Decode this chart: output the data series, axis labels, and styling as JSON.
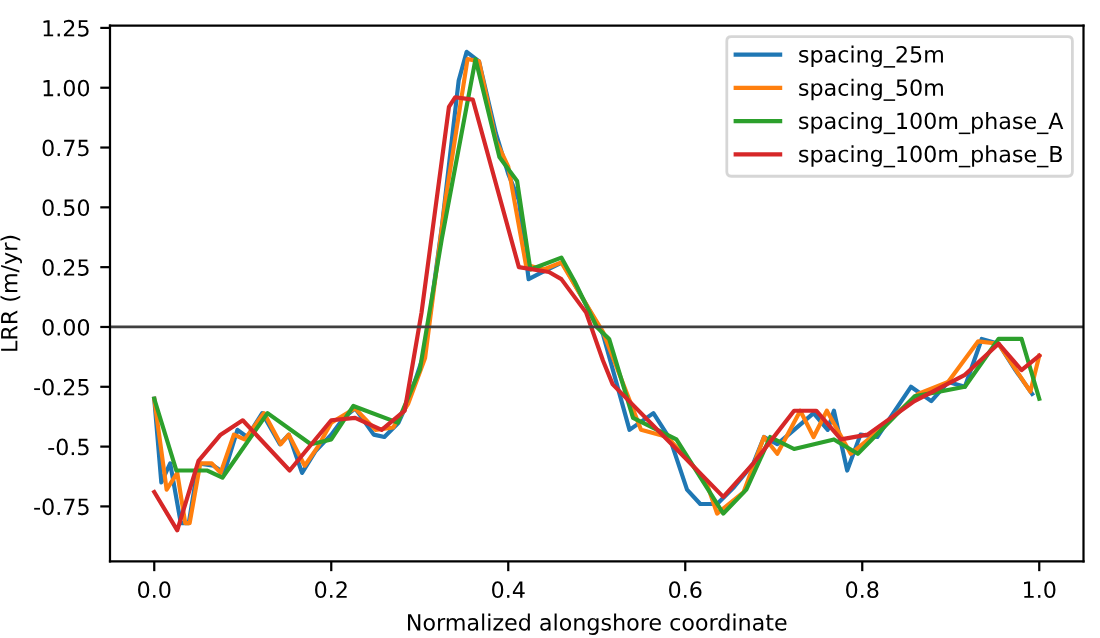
{
  "chart_data": {
    "type": "line",
    "xlabel": "Normalized alongshore coordinate",
    "ylabel": "LRR (m/yr)",
    "xlim": [
      -0.05,
      1.05
    ],
    "ylim": [
      -0.98,
      1.26
    ],
    "xticks": [
      {
        "value": 0,
        "label": "0.0"
      },
      0.2,
      0.4,
      0.6,
      0.8,
      {
        "value": 1,
        "label": "1.0"
      }
    ],
    "yticks": [
      -0.75,
      -0.5,
      -0.25,
      {
        "value": 0,
        "label": "0.00"
      },
      0.25,
      {
        "value": 0.5,
        "label": "0.50"
      },
      0.75,
      {
        "value": 1,
        "label": "1.00"
      },
      1.25
    ],
    "grid": false,
    "legend": "top right",
    "line_style": "solid",
    "marker": "none",
    "ref_lines": [
      {
        "axis": "y",
        "value": 0,
        "color": "#404040"
      }
    ],
    "series": [
      {
        "name": "spacing_25m",
        "color": "#1f77b4",
        "x": [
          0,
          0.008,
          0.018,
          0.03,
          0.039,
          0.05,
          0.067,
          0.079,
          0.094,
          0.105,
          0.122,
          0.142,
          0.152,
          0.167,
          0.182,
          0.2,
          0.214,
          0.227,
          0.248,
          0.26,
          0.276,
          0.287,
          0.306,
          0.325,
          0.344,
          0.353,
          0.367,
          0.386,
          0.4,
          0.412,
          0.423,
          0.439,
          0.461,
          0.484,
          0.507,
          0.537,
          0.564,
          0.583,
          0.602,
          0.617,
          0.636,
          0.655,
          0.677,
          0.689,
          0.704,
          0.723,
          0.745,
          0.761,
          0.768,
          0.783,
          0.798,
          0.817,
          0.855,
          0.878,
          0.897,
          0.916,
          0.935,
          0.954,
          0.973,
          0.992
        ],
        "values": [
          -0.3,
          -0.65,
          -0.57,
          -0.82,
          -0.82,
          -0.57,
          -0.58,
          -0.61,
          -0.43,
          -0.46,
          -0.36,
          -0.49,
          -0.45,
          -0.61,
          -0.52,
          -0.45,
          -0.38,
          -0.34,
          -0.45,
          -0.46,
          -0.4,
          -0.31,
          -0.1,
          0.42,
          1.03,
          1.15,
          1.11,
          0.81,
          0.64,
          0.53,
          0.2,
          0.23,
          0.27,
          0.12,
          -0.03,
          -0.43,
          -0.36,
          -0.47,
          -0.68,
          -0.74,
          -0.74,
          -0.67,
          -0.57,
          -0.46,
          -0.49,
          -0.43,
          -0.36,
          -0.43,
          -0.35,
          -0.6,
          -0.45,
          -0.46,
          -0.25,
          -0.31,
          -0.23,
          -0.25,
          -0.05,
          -0.07,
          -0.18,
          -0.28
        ]
      },
      {
        "name": "spacing_50m",
        "color": "#ff7f0e",
        "x": [
          0,
          0.014,
          0.026,
          0.035,
          0.04,
          0.052,
          0.065,
          0.075,
          0.09,
          0.102,
          0.124,
          0.143,
          0.152,
          0.17,
          0.185,
          0.2,
          0.227,
          0.25,
          0.27,
          0.287,
          0.306,
          0.329,
          0.354,
          0.367,
          0.386,
          0.4,
          0.42,
          0.44,
          0.46,
          0.484,
          0.507,
          0.55,
          0.58,
          0.623,
          0.636,
          0.666,
          0.689,
          0.704,
          0.73,
          0.745,
          0.76,
          0.787,
          0.81,
          0.863,
          0.897,
          0.931,
          0.954,
          0.99,
          1.0
        ],
        "values": [
          -0.3,
          -0.68,
          -0.61,
          -0.82,
          -0.82,
          -0.57,
          -0.57,
          -0.61,
          -0.45,
          -0.47,
          -0.36,
          -0.49,
          -0.45,
          -0.58,
          -0.5,
          -0.4,
          -0.34,
          -0.43,
          -0.42,
          -0.32,
          -0.13,
          0.53,
          1.12,
          1.11,
          0.78,
          0.67,
          0.26,
          0.24,
          0.27,
          0.12,
          -0.02,
          -0.43,
          -0.46,
          -0.64,
          -0.78,
          -0.69,
          -0.46,
          -0.53,
          -0.35,
          -0.46,
          -0.35,
          -0.53,
          -0.46,
          -0.28,
          -0.23,
          -0.06,
          -0.07,
          -0.27,
          -0.12
        ]
      },
      {
        "name": "spacing_100m_phase_A",
        "color": "#2ca02c",
        "x": [
          0,
          0.025,
          0.06,
          0.077,
          0.128,
          0.177,
          0.2,
          0.225,
          0.275,
          0.3,
          0.325,
          0.363,
          0.39,
          0.41,
          0.425,
          0.46,
          0.475,
          0.5,
          0.514,
          0.541,
          0.59,
          0.643,
          0.669,
          0.696,
          0.723,
          0.768,
          0.795,
          0.859,
          0.916,
          0.954,
          0.98,
          1.0
        ],
        "values": [
          -0.3,
          -0.6,
          -0.6,
          -0.63,
          -0.36,
          -0.49,
          -0.47,
          -0.33,
          -0.4,
          -0.18,
          0.37,
          1.12,
          0.71,
          0.61,
          0.24,
          0.29,
          0.19,
          0.0,
          -0.05,
          -0.38,
          -0.47,
          -0.78,
          -0.68,
          -0.46,
          -0.51,
          -0.47,
          -0.53,
          -0.29,
          -0.25,
          -0.05,
          -0.05,
          -0.3
        ]
      },
      {
        "name": "spacing_100m_phase_B",
        "color": "#d62728",
        "x": [
          0,
          0.026,
          0.05,
          0.075,
          0.1,
          0.153,
          0.2,
          0.227,
          0.257,
          0.283,
          0.302,
          0.333,
          0.34,
          0.36,
          0.412,
          0.446,
          0.46,
          0.488,
          0.507,
          0.518,
          0.598,
          0.643,
          0.677,
          0.723,
          0.748,
          0.776,
          0.806,
          0.859,
          0.916,
          0.954,
          0.98,
          1.0
        ],
        "values": [
          -0.69,
          -0.85,
          -0.56,
          -0.45,
          -0.39,
          -0.6,
          -0.39,
          -0.38,
          -0.43,
          -0.35,
          0.06,
          0.92,
          0.96,
          0.95,
          0.25,
          0.23,
          0.2,
          0.06,
          -0.14,
          -0.24,
          -0.54,
          -0.71,
          -0.57,
          -0.35,
          -0.35,
          -0.47,
          -0.45,
          -0.31,
          -0.2,
          -0.07,
          -0.18,
          -0.12
        ]
      }
    ]
  }
}
